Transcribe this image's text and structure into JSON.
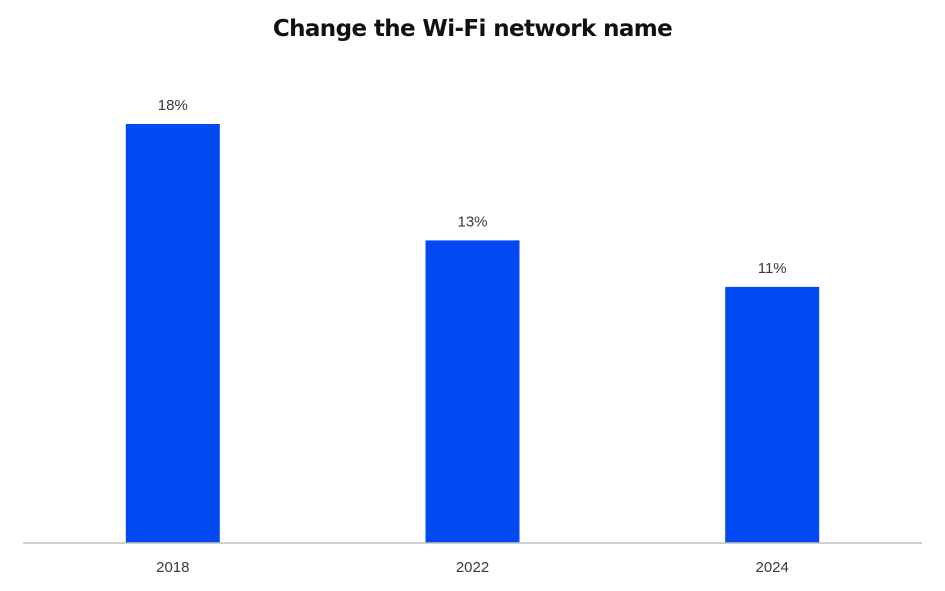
{
  "chart_data": {
    "type": "bar",
    "title": "Change the Wi-Fi network name",
    "categories": [
      "2018",
      "2022",
      "2024"
    ],
    "values": [
      18,
      13,
      11
    ],
    "value_labels": [
      "18%",
      "13%",
      "11%"
    ],
    "xlabel": "",
    "ylabel": "",
    "ylim": [
      0,
      18
    ],
    "grid": false,
    "legend": "none",
    "bar_color": "#0349F2",
    "axis_color": "#BFBFBF"
  }
}
